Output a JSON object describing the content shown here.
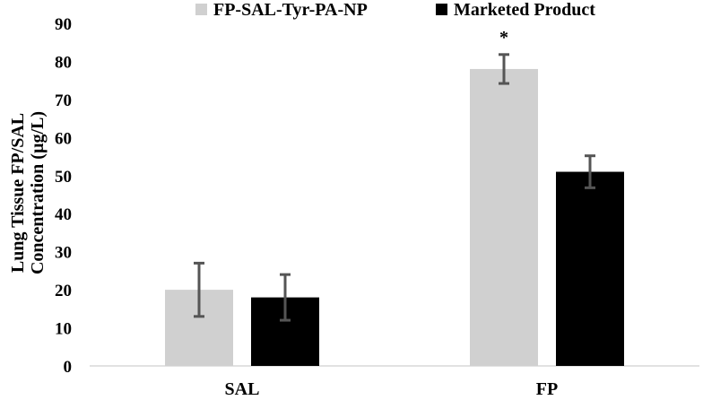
{
  "chart_data": {
    "type": "bar",
    "title": "",
    "xlabel": "",
    "ylabel_lines": [
      "Lung Tissue FP/SAL",
      "Concentration (µg/L)"
    ],
    "categories": [
      "SAL",
      "FP"
    ],
    "yticks": [
      "0",
      "10",
      "20",
      "30",
      "40",
      "50",
      "60",
      "70",
      "80",
      "90"
    ],
    "ylim": [
      0,
      90
    ],
    "grid": false,
    "legend_position": "top",
    "series": [
      {
        "name": "FP-SAL-Tyr-PA-NP",
        "color": "#d0d0d0",
        "values": [
          20,
          78
        ],
        "errors": [
          7,
          3.8
        ]
      },
      {
        "name": "Marketed Product",
        "color": "#000000",
        "values": [
          18,
          51
        ],
        "errors": [
          6,
          4.2
        ]
      }
    ],
    "annotations": [
      {
        "text": "*",
        "category_index": 1,
        "series_index": 0,
        "y": 82
      }
    ],
    "error_bar_color": "#555555"
  }
}
